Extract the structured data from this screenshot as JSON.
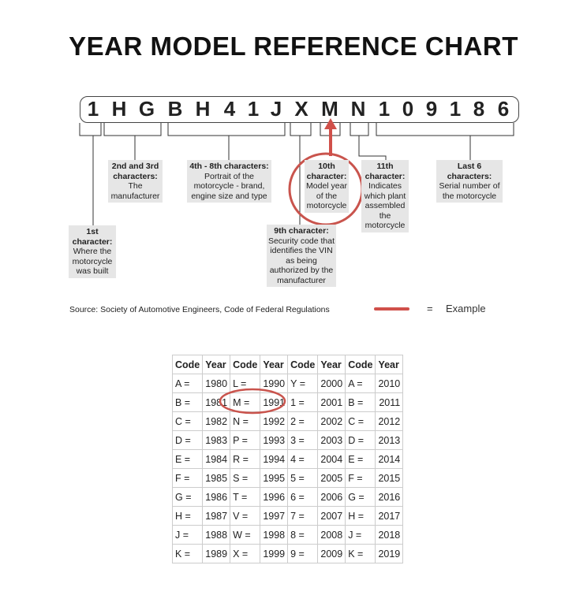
{
  "title": "YEAR MODEL REFERENCE CHART",
  "vin": [
    "1",
    "H",
    "G",
    "B",
    "H",
    "4",
    "1",
    "J",
    "X",
    "M",
    "N",
    "1",
    "0",
    "9",
    "1",
    "8",
    "6"
  ],
  "labels": {
    "first": {
      "head": "1st character:",
      "body": "Where the motorcycle was built"
    },
    "second": {
      "head": "2nd and 3rd characters:",
      "body": "The manufacturer"
    },
    "fourth": {
      "head": "4th - 8th characters:",
      "body": "Portrait of the motorcycle - brand, engine size and type"
    },
    "ninth": {
      "head": "9th character:",
      "body": "Security code that identifies the VIN as being authorized by the manufacturer"
    },
    "tenth": {
      "head": "10th character:",
      "body": "Model year of the motorcycle"
    },
    "eleventh": {
      "head": "11th character:",
      "body": "Indicates which plant assembled the motorcycle"
    },
    "last": {
      "head": "Last 6 characters:",
      "body": "Serial number of the motorcycle"
    }
  },
  "source": "Source:  Society of Automotive Engineers, Code of Federal Regulations",
  "legend": {
    "equals": "=",
    "label": "Example",
    "color": "#d0504a"
  },
  "table": {
    "headers": [
      "Code",
      "Year",
      "Code",
      "Year",
      "Code",
      "Year",
      "Code",
      "Year"
    ],
    "rows": [
      [
        "A =",
        "1980",
        "L =",
        "1990",
        "Y =",
        "2000",
        "A =",
        "2010"
      ],
      [
        "B =",
        "1981",
        "M =",
        "1991",
        "1 =",
        "2001",
        "B =",
        "2011"
      ],
      [
        "C =",
        "1982",
        "N =",
        "1992",
        "2 =",
        "2002",
        "C =",
        "2012"
      ],
      [
        "D =",
        "1983",
        "P =",
        "1993",
        "3 =",
        "2003",
        "D =",
        "2013"
      ],
      [
        "E =",
        "1984",
        "R =",
        "1994",
        "4 =",
        "2004",
        "E =",
        "2014"
      ],
      [
        "F =",
        "1985",
        "S =",
        "1995",
        "5 =",
        "2005",
        "F =",
        "2015"
      ],
      [
        "G =",
        "1986",
        "T =",
        "1996",
        "6 =",
        "2006",
        "G =",
        "2016"
      ],
      [
        "H =",
        "1987",
        "V =",
        "1997",
        "7 =",
        "2007",
        "H =",
        "2017"
      ],
      [
        "J =",
        "1988",
        "W =",
        "1998",
        "8 =",
        "2008",
        "J =",
        "2018"
      ],
      [
        "K =",
        "1989",
        "X =",
        "1999",
        "9 =",
        "2009",
        "K =",
        "2019"
      ]
    ]
  }
}
